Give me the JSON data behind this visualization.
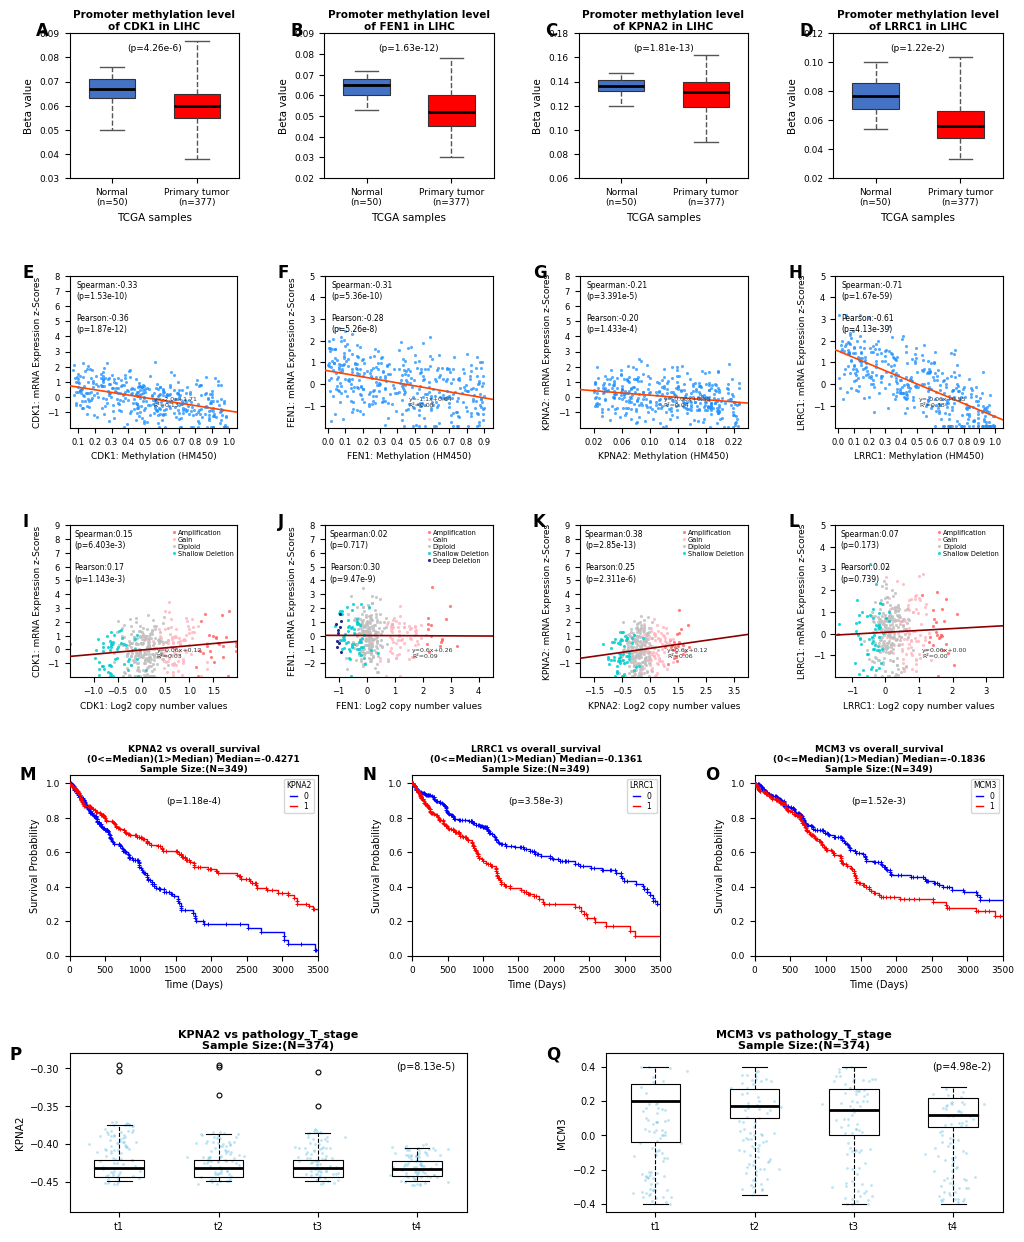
{
  "box_A": {
    "title": "Promoter methylation level\nof CDK1 in LIHC",
    "pval": "p=4.26e-6",
    "ylabel": "Beta value",
    "xlabel": "TCGA samples",
    "groups": [
      "Normal\n(n=50)",
      "Primary tumor\n(n=377)"
    ],
    "normal": {
      "q1": 0.063,
      "q2": 0.067,
      "q3": 0.071,
      "whislo": 0.05,
      "whishi": 0.076
    },
    "tumor": {
      "q1": 0.055,
      "q2": 0.06,
      "q3": 0.065,
      "whislo": 0.038,
      "whishi": 0.087
    },
    "ylim": [
      0.03,
      0.09
    ],
    "yticks": [
      0.03,
      0.04,
      0.05,
      0.06,
      0.07,
      0.08,
      0.09
    ]
  },
  "box_B": {
    "title": "Promoter methylation level\nof FEN1 in LIHC",
    "pval": "p=1.63e-12",
    "ylabel": "Beta value",
    "xlabel": "TCGA samples",
    "groups": [
      "Normal\n(n=50)",
      "Primary tumor\n(n=377)"
    ],
    "normal": {
      "q1": 0.06,
      "q2": 0.065,
      "q3": 0.068,
      "whislo": 0.053,
      "whishi": 0.072
    },
    "tumor": {
      "q1": 0.045,
      "q2": 0.052,
      "q3": 0.06,
      "whislo": 0.03,
      "whishi": 0.078
    },
    "ylim": [
      0.02,
      0.09
    ],
    "yticks": [
      0.02,
      0.03,
      0.04,
      0.05,
      0.06,
      0.07,
      0.08,
      0.09
    ]
  },
  "box_C": {
    "title": "Promoter methylation level\nof KPNA2 in LIHC",
    "pval": "p=1.81e-13",
    "ylabel": "Beta value",
    "xlabel": "TCGA samples",
    "groups": [
      "Normal\n(n=50)",
      "Primary tumor\n(n=377)"
    ],
    "normal": {
      "q1": 0.132,
      "q2": 0.136,
      "q3": 0.141,
      "whislo": 0.12,
      "whishi": 0.147
    },
    "tumor": {
      "q1": 0.119,
      "q2": 0.131,
      "q3": 0.14,
      "whislo": 0.09,
      "whishi": 0.162
    },
    "ylim": [
      0.06,
      0.18
    ],
    "yticks": [
      0.06,
      0.08,
      0.1,
      0.12,
      0.14,
      0.16,
      0.18
    ]
  },
  "box_D": {
    "title": "Promoter methylation level\nof LRRC1 in LIHC",
    "pval": "p=1.22e-2",
    "ylabel": "Beta value",
    "xlabel": "TCGA samples",
    "groups": [
      "Normal\n(n=50)",
      "Primary tumor\n(n=377)"
    ],
    "normal": {
      "q1": 0.068,
      "q2": 0.077,
      "q3": 0.086,
      "whislo": 0.054,
      "whishi": 0.1
    },
    "tumor": {
      "q1": 0.048,
      "q2": 0.056,
      "q3": 0.066,
      "whislo": 0.033,
      "whishi": 0.104
    },
    "ylim": [
      0.02,
      0.12
    ],
    "yticks": [
      0.02,
      0.04,
      0.06,
      0.08,
      0.1,
      0.12
    ]
  },
  "scatter_E": {
    "xlabel": "CDK1: Methylation (HM450)",
    "ylabel": "CDK1: mRNA Expression z-Scores",
    "stats": "Spearman:-0.33\n(p=1.53e-10)\n\nPearson:-0.36\n(p=1.87e-12)",
    "reg_eq": "y=-2.0x+1.71\nR²=0.13",
    "xlim": [
      0.05,
      1.05
    ],
    "ylim": [
      -2,
      8
    ],
    "xticks": [
      0.1,
      0.2,
      0.3,
      0.4,
      0.5,
      0.6,
      0.7,
      0.8,
      0.9,
      1
    ],
    "yticks": [
      -1,
      0,
      1,
      2,
      3,
      4,
      5,
      6,
      7,
      8
    ],
    "dot_color": "#1E90FF",
    "line_color": "#FF4500"
  },
  "scatter_F": {
    "xlabel": "FEN1: Methylation (HM450)",
    "ylabel": "FEN1: mRNA Expression z-Scores",
    "stats": "Spearman:-0.31\n(p=5.36e-10)\n\nPearson:-0.28\n(p=5.26e-8)",
    "reg_eq": "y=-1.1x+0.64\nR²=0.08",
    "xlim": [
      -0.02,
      0.95
    ],
    "ylim": [
      -2,
      5
    ],
    "xticks": [
      0,
      0.1,
      0.2,
      0.3,
      0.4,
      0.5,
      0.6,
      0.7,
      0.8,
      0.9
    ],
    "yticks": [
      -1,
      0,
      1,
      2,
      3,
      4,
      5
    ],
    "dot_color": "#1E90FF",
    "line_color": "#FF4500"
  },
  "scatter_G": {
    "xlabel": "KPNA2: Methylation (HM450)",
    "ylabel": "KPNA2: mRNA Expression z-Scores",
    "stats": "Spearman:-0.21\n(p=3.391e-5)\n\nPearson:-0.20\n(p=1.433e-4)",
    "reg_eq": "y=-0.06x+0.55\nR²=0.04",
    "xlim": [
      0.0,
      0.24
    ],
    "ylim": [
      -2,
      8
    ],
    "xticks": [
      0.02,
      0.06,
      0.1,
      0.14,
      0.18,
      0.22
    ],
    "yticks": [
      -1,
      0,
      1,
      2,
      3,
      4,
      5,
      6,
      7,
      8
    ],
    "dot_color": "#1E90FF",
    "line_color": "#FF4500"
  },
  "scatter_H": {
    "xlabel": "LRRC1: Methylation (HM450)",
    "ylabel": "LRRC1: mRNA Expression z-Scores",
    "stats": "Spearman:-0.71\n(p=1.67e-59)\n\nPearson:-0.61\n(p=4.13e-39)",
    "reg_eq": "y=-0.06x+0.55\nR²=0.38",
    "xlim": [
      -0.02,
      1.05
    ],
    "ylim": [
      -2,
      5
    ],
    "xticks": [
      0,
      0.1,
      0.2,
      0.3,
      0.4,
      0.5,
      0.6,
      0.7,
      0.8,
      0.9,
      1
    ],
    "yticks": [
      -1,
      0,
      1,
      2,
      3,
      4,
      5
    ],
    "dot_color": "#1E90FF",
    "line_color": "#FF4500"
  },
  "scatter_I": {
    "xlabel": "CDK1: Log2 copy number values",
    "ylabel": "CDK1: mRNA Expression z-Scores",
    "stats": "Spearman:0.15\n(p=6.403e-3)\n\nPearson:0.17\n(p=1.143e-3)",
    "reg_eq": "y=0.06x+0.12\nR²=0.03",
    "xlim": [
      -1.5,
      2.0
    ],
    "ylim": [
      -2,
      9
    ],
    "xticks": [
      -1,
      -0.5,
      0,
      0.5,
      1,
      1.5
    ],
    "yticks": [
      -1,
      0,
      1,
      2,
      3,
      4,
      5,
      6,
      7,
      8,
      9
    ],
    "legend": [
      "Amplification",
      "Gain",
      "Diploid",
      "Shallow Deletion"
    ],
    "leg_colors": [
      "#FF6666",
      "#FFB6C1",
      "#C0C0C0",
      "#00CED1"
    ],
    "line_color": "#8B0000"
  },
  "scatter_J": {
    "xlabel": "FEN1: Log2 copy number values",
    "ylabel": "FEN1: mRNA Expression z-Scores",
    "stats": "Spearman:0.02\n(p=0.717)\n\nPearson:0.30\n(p=9.47e-9)",
    "reg_eq": "y=0.6x+0.26\nR²=0.09",
    "xlim": [
      -1.5,
      4.5
    ],
    "ylim": [
      -3,
      8
    ],
    "xticks": [
      -1,
      0,
      1,
      2,
      3,
      4
    ],
    "yticks": [
      -2,
      -1,
      0,
      1,
      2,
      3,
      4,
      5,
      6,
      7,
      8
    ],
    "legend": [
      "Amplification",
      "Gain",
      "Diploid",
      "Shallow Deletion",
      "Deep Deletion"
    ],
    "leg_colors": [
      "#FF6666",
      "#FFB6C1",
      "#C0C0C0",
      "#00CED1",
      "#000080"
    ],
    "line_color": "#8B0000"
  },
  "scatter_K": {
    "xlabel": "KPNA2: Log2 copy number values",
    "ylabel": "KPNA2: mRNA Expression z-Scores",
    "stats": "Spearman:0.38\n(p=2.85e-13)\n\nPearson:0.25\n(p=2.311e-6)",
    "reg_eq": "y=0.6x+0.12\nR²=0.06",
    "xlim": [
      -2.0,
      4.0
    ],
    "ylim": [
      -2,
      9
    ],
    "xticks": [
      -1.5,
      -0.5,
      0.5,
      1.5,
      2.5,
      3.5
    ],
    "yticks": [
      -1,
      0,
      1,
      2,
      3,
      4,
      5,
      6,
      7,
      8,
      9
    ],
    "legend": [
      "Amplification",
      "Gain",
      "Diploid",
      "Shallow Deletion"
    ],
    "leg_colors": [
      "#FF6666",
      "#FFB6C1",
      "#C0C0C0",
      "#00CED1"
    ],
    "line_color": "#8B0000"
  },
  "scatter_L": {
    "xlabel": "LRRC1: Log2 copy number values",
    "ylabel": "LRRC1: mRNA Expression z-Scores",
    "stats": "Spearman:0.07\n(p=0.173)\n\nPearson:0.02\n(p=0.739)",
    "reg_eq": "y=0.06x+0.00\nR²=0.00",
    "xlim": [
      -1.5,
      3.5
    ],
    "ylim": [
      -2,
      5
    ],
    "xticks": [
      -1,
      0,
      1,
      2,
      3
    ],
    "yticks": [
      -1,
      0,
      1,
      2,
      3,
      4,
      5
    ],
    "legend": [
      "Amplification",
      "Gain",
      "Diploid",
      "Shallow Deletion"
    ],
    "leg_colors": [
      "#FF6666",
      "#FFB6C1",
      "#C0C0C0",
      "#00CED1"
    ],
    "line_color": "#8B0000"
  },
  "km_M": {
    "title": "KPNA2 vs overall_survival\n(0<=Median)(1>Median) Median=-0.4271\nSample Size:(N=349)",
    "pval": "p=1.18e-4",
    "xlabel": "Time (Days)",
    "ylabel": "Survival Probability",
    "colors": [
      "#0000FF",
      "#FF0000"
    ],
    "legend_title": "KPNA2",
    "legend_labels": [
      "0",
      "1"
    ],
    "xlim": [
      0,
      3500
    ],
    "ylim": [
      0.0,
      1.05
    ],
    "xticks": [
      0,
      500,
      1000,
      1500,
      2000,
      2500,
      3000,
      3500
    ],
    "yticks": [
      0.0,
      0.2,
      0.4,
      0.6,
      0.8,
      1.0
    ],
    "curve0_scale": 800,
    "curve1_scale": 1600
  },
  "km_N": {
    "title": "LRRC1 vs overall_survival\n(0<=Median)(1>Median) Median=-0.1361\nSample Size:(N=349)",
    "pval": "p=3.58e-3",
    "xlabel": "Time (Days)",
    "ylabel": "Survival Probability",
    "colors": [
      "#0000FF",
      "#FF0000"
    ],
    "legend_title": "LRRC1",
    "legend_labels": [
      "0",
      "1"
    ],
    "xlim": [
      0,
      3500
    ],
    "ylim": [
      0.0,
      1.05
    ],
    "xticks": [
      0,
      500,
      1000,
      1500,
      2000,
      2500,
      3000,
      3500
    ],
    "yticks": [
      0.0,
      0.2,
      0.4,
      0.6,
      0.8,
      1.0
    ],
    "curve0_scale": 1400,
    "curve1_scale": 1000
  },
  "km_O": {
    "title": "MCM3 vs overall_survival\n(0<=Median)(1>Median) Median=-0.1836\nSample Size:(N=349)",
    "pval": "p=1.52e-3",
    "xlabel": "Time (Days)",
    "ylabel": "Survival Probability",
    "colors": [
      "#0000FF",
      "#FF0000"
    ],
    "legend_title": "MCM3",
    "legend_labels": [
      "0",
      "1"
    ],
    "xlim": [
      0,
      3500
    ],
    "ylim": [
      0.0,
      1.05
    ],
    "xticks": [
      0,
      500,
      1000,
      1500,
      2000,
      2500,
      3000,
      3500
    ],
    "yticks": [
      0.0,
      0.2,
      0.4,
      0.6,
      0.8,
      1.0
    ],
    "curve0_scale": 1800,
    "curve1_scale": 1200
  },
  "box_P": {
    "title": "KPNA2 vs pathology_T_stage\nSample Size:(N=374)",
    "pval": "p=8.13e-5",
    "ylabel": "KPNA2",
    "groups": [
      "t1",
      "t2",
      "t3",
      "t4"
    ],
    "dot_color": "#87CEEB",
    "t1": {
      "q1": -0.443,
      "q2": -0.432,
      "q3": -0.421,
      "whislo": -0.449,
      "whishi": -0.375,
      "out": [
        -0.303,
        -0.295
      ]
    },
    "t2": {
      "q1": -0.444,
      "q2": -0.432,
      "q3": -0.421,
      "whislo": -0.449,
      "whishi": -0.387,
      "out": [
        -0.295,
        -0.298,
        -0.335
      ]
    },
    "t3": {
      "q1": -0.443,
      "q2": -0.432,
      "q3": -0.421,
      "whislo": -0.449,
      "whishi": -0.385,
      "out": [
        -0.305,
        -0.35
      ]
    },
    "t4": {
      "q1": -0.442,
      "q2": -0.433,
      "q3": -0.422,
      "whislo": -0.449,
      "whishi": -0.405,
      "out": []
    },
    "ylim": [
      -0.49,
      -0.28
    ],
    "yticks": [
      -0.45,
      -0.4,
      -0.35,
      -0.3
    ]
  },
  "box_Q": {
    "title": "MCM3 vs pathology_T_stage\nSample Size:(N=374)",
    "pval": "p=4.98e-2",
    "ylabel": "MCM3",
    "groups": [
      "t1",
      "t2",
      "t3",
      "t4"
    ],
    "dot_color": "#87CEEB",
    "t1": {
      "q1": -0.04,
      "q2": 0.2,
      "q3": 0.3,
      "whislo": -0.4,
      "whishi": 0.4,
      "out": []
    },
    "t2": {
      "q1": 0.1,
      "q2": 0.17,
      "q3": 0.27,
      "whislo": -0.35,
      "whishi": 0.4,
      "out": []
    },
    "t3": {
      "q1": 0.0,
      "q2": 0.15,
      "q3": 0.27,
      "whislo": -0.4,
      "whishi": 0.4,
      "out": []
    },
    "t4": {
      "q1": 0.05,
      "q2": 0.12,
      "q3": 0.22,
      "whislo": -0.4,
      "whishi": 0.28,
      "out": []
    },
    "ylim": [
      -0.45,
      0.48
    ],
    "yticks": [
      -0.4,
      -0.2,
      0.0,
      0.2,
      0.4
    ]
  }
}
